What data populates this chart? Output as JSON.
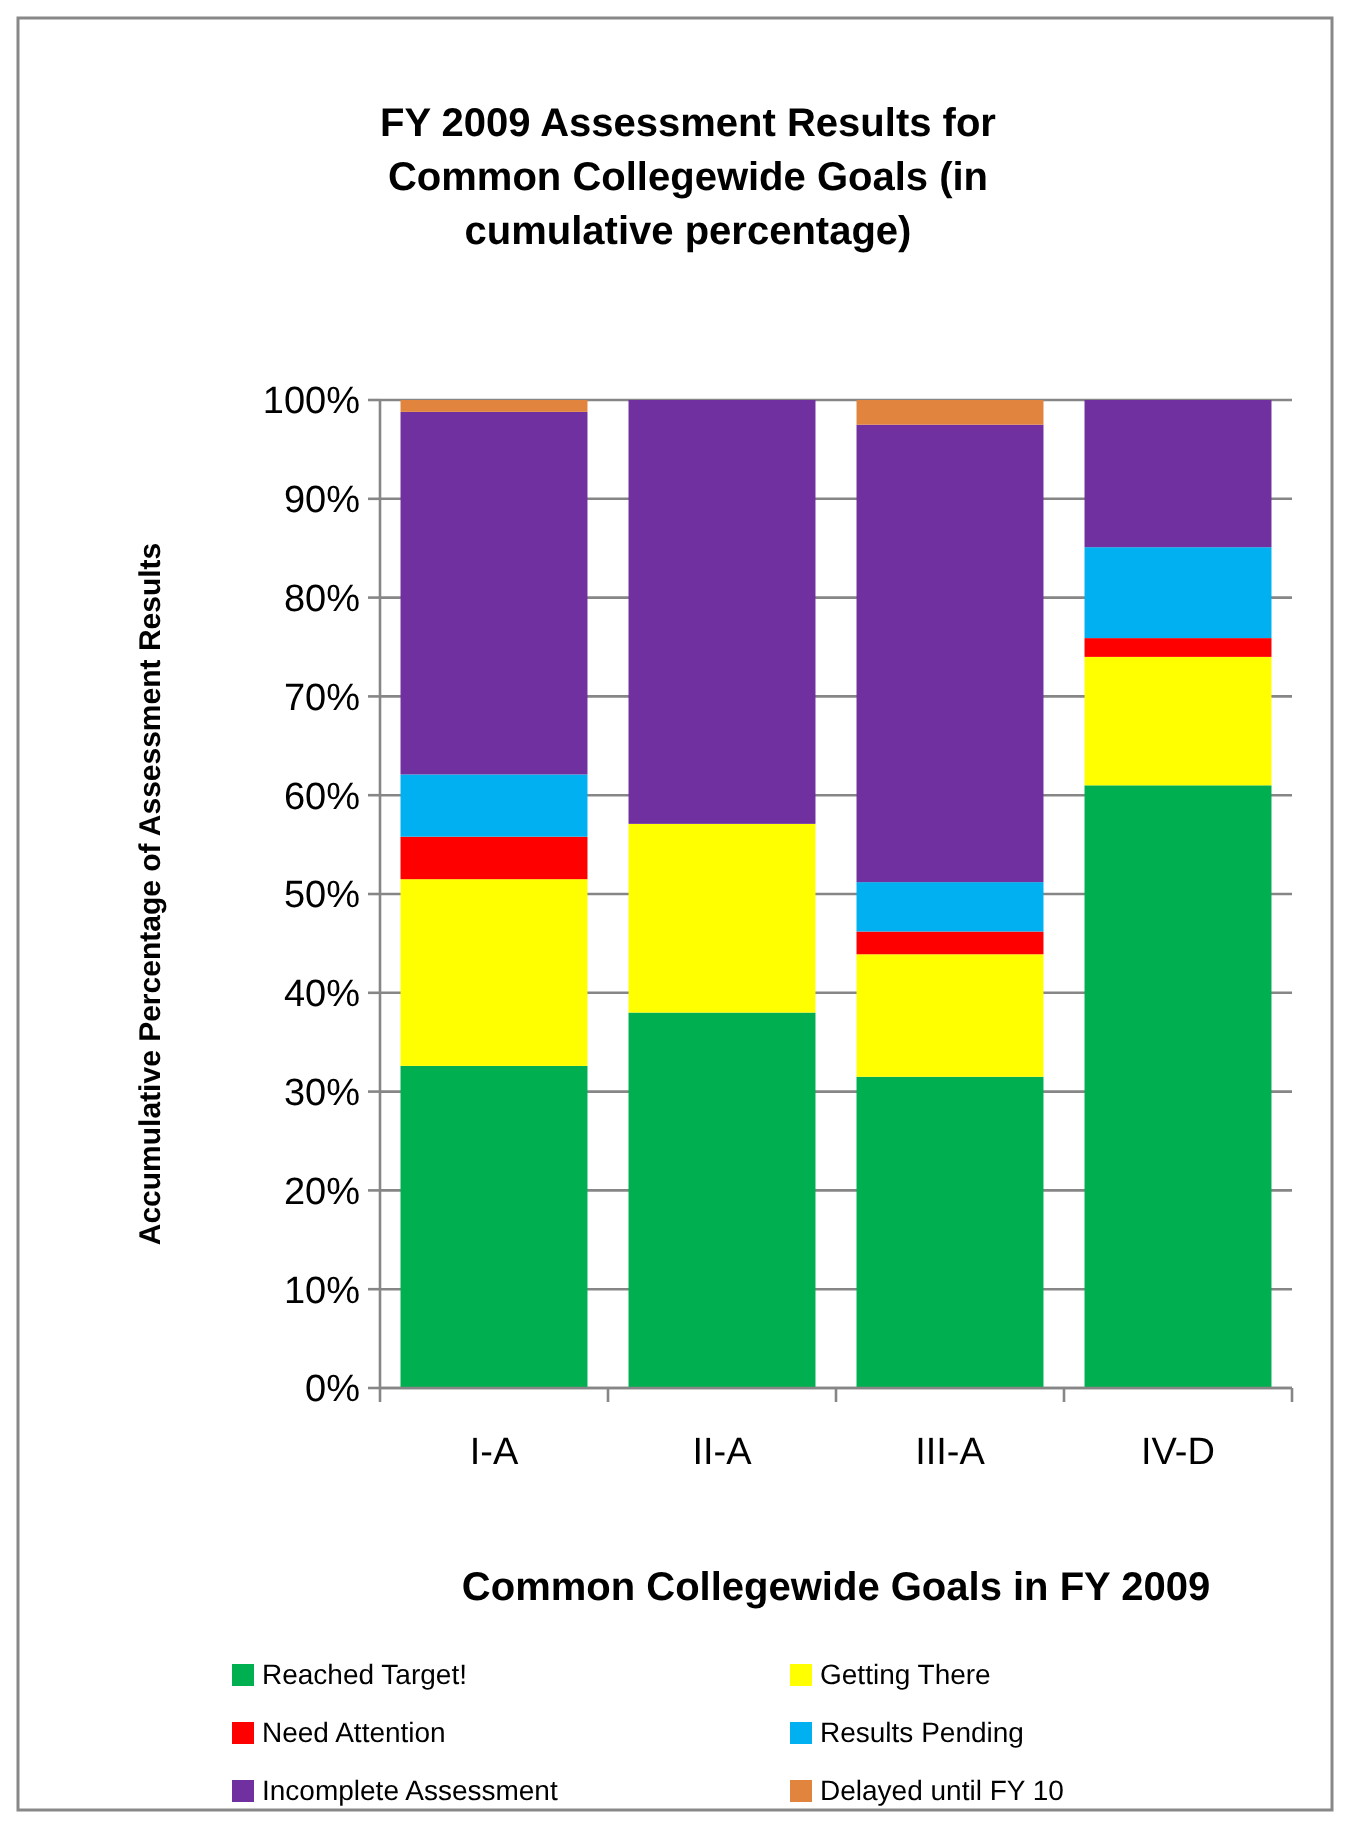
{
  "chart_data": {
    "type": "bar",
    "title": "FY 2009 Assessment Results for Common Collegewide Goals (in cumulative percentage)",
    "xlabel": "Common Collegewide Goals in FY 2009",
    "ylabel": "Accumulative Percentage of Assessment Results",
    "categories": [
      "I-A",
      "II-A",
      "III-A",
      "IV-D"
    ],
    "stacked": true,
    "ylim": [
      0,
      100
    ],
    "yticks": [
      {
        "value": 0,
        "label": "0%"
      },
      {
        "value": 10,
        "label": "10%"
      },
      {
        "value": 20,
        "label": "20%"
      },
      {
        "value": 30,
        "label": "30%"
      },
      {
        "value": 40,
        "label": "40%"
      },
      {
        "value": 50,
        "label": "50%"
      },
      {
        "value": 60,
        "label": "60%"
      },
      {
        "value": 70,
        "label": "70%"
      },
      {
        "value": 80,
        "label": "80%"
      },
      {
        "value": 90,
        "label": "90%"
      },
      {
        "value": 100,
        "label": "100%"
      }
    ],
    "grid": "y",
    "legend": "bottom",
    "series": [
      {
        "name": "Reached Target!",
        "color": "#00b050",
        "values": [
          32.6,
          38.0,
          31.5,
          61.0
        ]
      },
      {
        "name": "Getting There",
        "color": "#ffff00",
        "values": [
          18.9,
          19.1,
          12.4,
          13.0
        ]
      },
      {
        "name": "Need Attention",
        "color": "#ff0000",
        "values": [
          4.3,
          0,
          2.3,
          1.9
        ]
      },
      {
        "name": "Results Pending",
        "color": "#00b0f0",
        "values": [
          6.3,
          0,
          5.0,
          9.2
        ]
      },
      {
        "name": "Incomplete Assessment",
        "color": "#7030a0",
        "values": [
          36.7,
          42.9,
          46.3,
          14.9
        ]
      },
      {
        "name": "Delayed until FY 10",
        "color": "#e0843e",
        "values": [
          1.2,
          0,
          2.5,
          0
        ]
      }
    ]
  }
}
